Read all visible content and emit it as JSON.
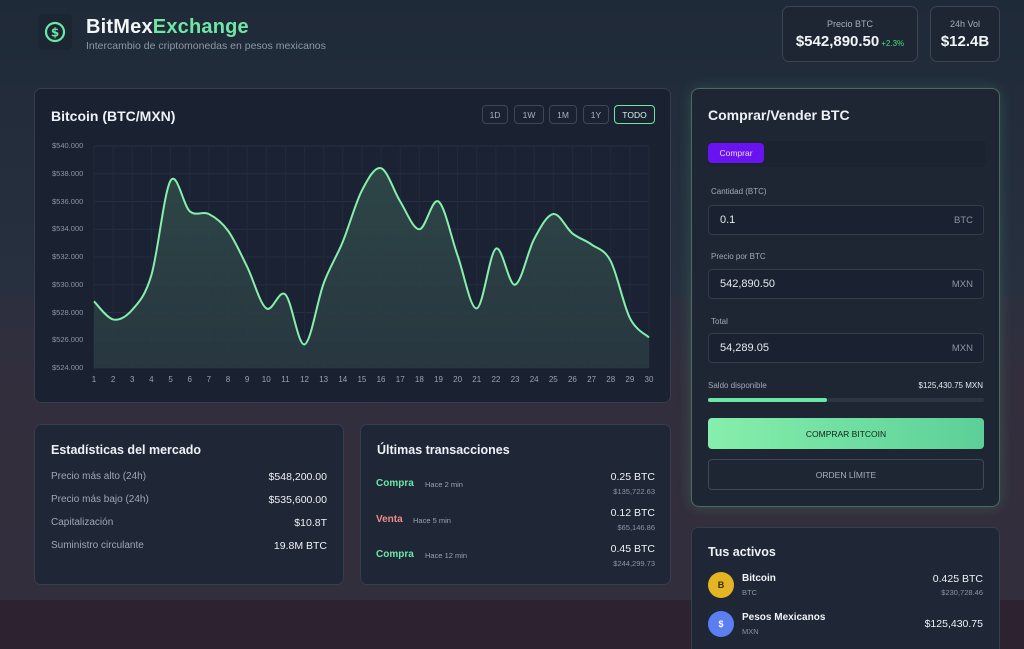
{
  "header": {
    "brand_part1": "BitMex",
    "brand_part2": "Exchange",
    "tagline": "Intercambio de criptomonedas en pesos mexicanos",
    "logo_icon": "dollar-circle-icon",
    "price_card": {
      "label": "Precio BTC",
      "value": "$542,890.50",
      "change": "+2.3%"
    },
    "volume_card": {
      "label": "24h Vol",
      "value": "$12.4B"
    }
  },
  "chart_panel": {
    "title": "Bitcoin (BTC/MXN)",
    "ranges": [
      "1D",
      "1W",
      "1M",
      "1Y",
      "TODO"
    ],
    "active_range": "TODO"
  },
  "chart_data": {
    "type": "area",
    "title": "Bitcoin (BTC/MXN)",
    "xlabel": "",
    "ylabel": "",
    "x": [
      1,
      2,
      3,
      4,
      5,
      6,
      7,
      8,
      9,
      10,
      11,
      12,
      13,
      14,
      15,
      16,
      17,
      18,
      19,
      20,
      21,
      22,
      23,
      24,
      25,
      26,
      27,
      28,
      29,
      30
    ],
    "values": [
      528800,
      527500,
      528200,
      530700,
      537500,
      535300,
      535100,
      533900,
      531300,
      528300,
      529300,
      525700,
      530100,
      533100,
      536800,
      538400,
      536000,
      534000,
      536000,
      532100,
      528300,
      532600,
      530000,
      533300,
      535100,
      533700,
      532900,
      531700,
      527600,
      526200
    ],
    "y_tick_labels": [
      "$540.000",
      "$538.000",
      "$536.000",
      "$534.000",
      "$532.000",
      "$530.000",
      "$528.000",
      "$526.000",
      "$524.000"
    ],
    "ylim": [
      524000,
      540000
    ],
    "grid": true,
    "line_color": "#86efac",
    "fill_color": "#2b3d44"
  },
  "trade_panel": {
    "title": "Comprar/Vender BTC",
    "tab_active": "Comprar",
    "quantity": {
      "label": "Cantidad (BTC)",
      "value": "0.1",
      "unit": "BTC"
    },
    "price": {
      "label": "Precio por BTC",
      "value": "542,890.50",
      "unit": "MXN"
    },
    "total": {
      "label": "Total",
      "value": "54,289.05",
      "unit": "MXN"
    },
    "balance_label": "Saldo disponible",
    "balance_value": "$125,430.75 MXN",
    "balance_progress_pct": 43,
    "buy_button": "COMPRAR BITCOIN",
    "limit_button": "ORDEN LÍMITE"
  },
  "market_stats": {
    "title": "Estadísticas del mercado",
    "rows": [
      {
        "label": "Precio más alto (24h)",
        "value": "$548,200.00"
      },
      {
        "label": "Precio más bajo (24h)",
        "value": "$535,600.00"
      },
      {
        "label": "Capitalización",
        "value": "$10.8T"
      },
      {
        "label": "Suministro circulante",
        "value": "19.8M BTC"
      }
    ]
  },
  "transactions": {
    "title": "Últimas transacciones",
    "items": [
      {
        "type": "Compra",
        "time": "Hace 2 min",
        "amount": "0.25 BTC",
        "mxn": "$135,722.63",
        "color": "#6ee7a6"
      },
      {
        "type": "Venta",
        "time": "Hace 5 min",
        "amount": "0.12 BTC",
        "mxn": "$65,146.86",
        "color": "#f08a8a"
      },
      {
        "type": "Compra",
        "time": "Hace 12 min",
        "amount": "0.45 BTC",
        "mxn": "$244,299.73",
        "color": "#6ee7a6"
      }
    ]
  },
  "assets": {
    "title": "Tus activos",
    "items": [
      {
        "icon": "B",
        "name": "Bitcoin",
        "code": "BTC",
        "amount": "0.425 BTC",
        "mxn": "$230,728.46",
        "color": "#e3b424"
      },
      {
        "icon": "$",
        "name": "Pesos Mexicanos",
        "code": "MXN",
        "amount": "$125,430.75",
        "mxn": "",
        "color": "#5b7ef0"
      }
    ]
  }
}
